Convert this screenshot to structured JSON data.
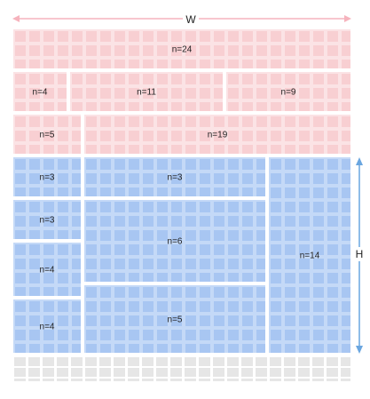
{
  "dimensions": {
    "width_label": "W",
    "height_label": "H"
  },
  "colors": {
    "top_group": "#f8cfd2",
    "bottom_group": "#a8c6f2",
    "empty": "#e6e6e6",
    "arrow_top": "#f6b3bd",
    "arrow_side": "#6aa6e0"
  },
  "blocks": [
    {
      "label": "n=24",
      "group": "top"
    },
    {
      "label": "n=4",
      "group": "top"
    },
    {
      "label": "n=11",
      "group": "top"
    },
    {
      "label": "n=9",
      "group": "top"
    },
    {
      "label": "n=5",
      "group": "top"
    },
    {
      "label": "n=19",
      "group": "top"
    },
    {
      "label": "n=3",
      "group": "bottom"
    },
    {
      "label": "n=3",
      "group": "bottom"
    },
    {
      "label": "n=4",
      "group": "bottom"
    },
    {
      "label": "n=4",
      "group": "bottom"
    },
    {
      "label": "n=3",
      "group": "bottom"
    },
    {
      "label": "n=6",
      "group": "bottom"
    },
    {
      "label": "n=5",
      "group": "bottom"
    },
    {
      "label": "n=14",
      "group": "bottom"
    }
  ]
}
